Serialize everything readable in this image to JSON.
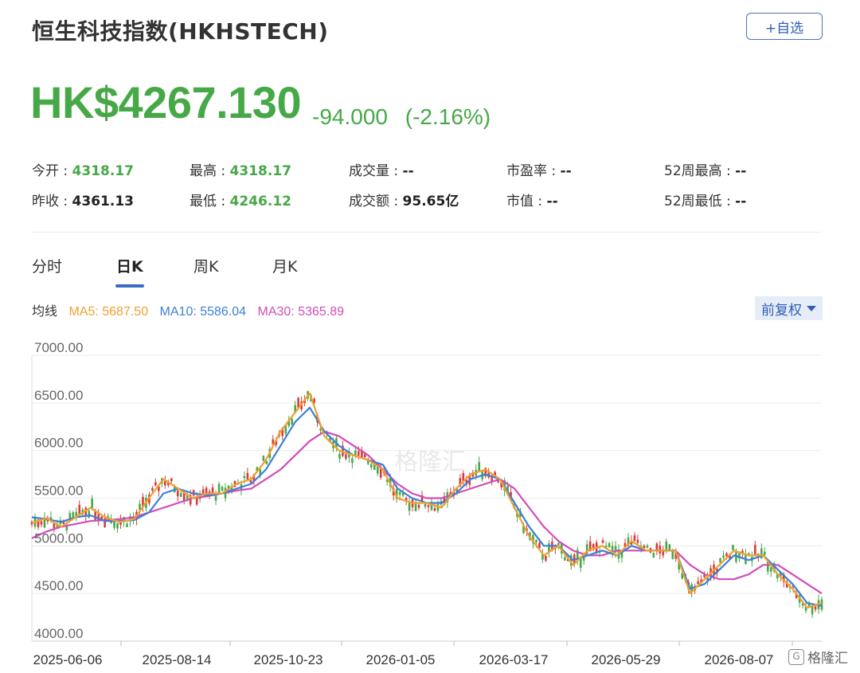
{
  "header": {
    "title": "恒生科技指数(HKHSTECH)",
    "watch_button": "+自选"
  },
  "quote": {
    "price": "HK$4267.130",
    "change": "-94.000",
    "change_pct": "(-2.16%)",
    "color_down": "#47a848"
  },
  "stats": {
    "row1": [
      {
        "label": "今开 : ",
        "value": "4318.17",
        "tone": "green"
      },
      {
        "label": "最高 : ",
        "value": "4318.17",
        "tone": "green"
      },
      {
        "label": "成交量 : ",
        "value": "--",
        "tone": "dark"
      },
      {
        "label": "市盈率 : ",
        "value": "--",
        "tone": "dark"
      },
      {
        "label": "52周最高 : ",
        "value": "--",
        "tone": "dark"
      }
    ],
    "row2": [
      {
        "label": "昨收 : ",
        "value": "4361.13",
        "tone": "dark"
      },
      {
        "label": "最低 : ",
        "value": "4246.12",
        "tone": "green"
      },
      {
        "label": "成交额 : ",
        "value": "95.65亿",
        "tone": "dark"
      },
      {
        "label": "市值 : ",
        "value": "--",
        "tone": "dark"
      },
      {
        "label": "52周最低 : ",
        "value": "--",
        "tone": "dark"
      }
    ]
  },
  "tabs": [
    "分时",
    "日K",
    "周K",
    "月K"
  ],
  "active_tab": "日K",
  "ma": {
    "label": "均线",
    "ma5": "MA5: 5687.50",
    "ma10": "MA10: 5586.04",
    "ma30": "MA30: 5365.89"
  },
  "adjust_button": "前复权",
  "watermark": "格隆汇",
  "footer_logo": "格隆汇",
  "chart_data": {
    "type": "line",
    "y_ticks": [
      "7000.00",
      "6500.00",
      "6000.00",
      "5500.00",
      "5000.00",
      "4500.00",
      "4000.00"
    ],
    "ylim": [
      4000,
      7000
    ],
    "x_ticks": [
      "2025-06-06",
      "2025-08-14",
      "2025-10-23",
      "2026-01-05",
      "2026-03-17",
      "2026-05-29",
      "2026-08-07"
    ],
    "colors": {
      "up": "#d93a3a",
      "down": "#47a848",
      "ma5": "#f0a030",
      "ma10": "#3d7fd8",
      "ma30": "#d14cba"
    },
    "series": [
      {
        "name": "MA5",
        "values": [
          5240,
          5290,
          5200,
          5300,
          5400,
          5300,
          5250,
          5280,
          5500,
          5700,
          5600,
          5500,
          5550,
          5550,
          5650,
          5700,
          5900,
          6200,
          6400,
          6600,
          6150,
          6000,
          5950,
          5900,
          5800,
          5500,
          5450,
          5450,
          5400,
          5600,
          5750,
          5800,
          5700,
          5400,
          5100,
          4900,
          5000,
          4800,
          4950,
          5000,
          4900,
          5050,
          4950,
          4950,
          4950,
          4500,
          4650,
          4800,
          4950,
          4900,
          4900,
          4700,
          4550,
          4350,
          4400
        ]
      },
      {
        "name": "MA10",
        "values": [
          5300,
          5280,
          5250,
          5300,
          5320,
          5260,
          5260,
          5270,
          5350,
          5550,
          5600,
          5550,
          5530,
          5550,
          5600,
          5650,
          5800,
          6050,
          6300,
          6450,
          6200,
          6050,
          5950,
          5900,
          5850,
          5600,
          5500,
          5450,
          5450,
          5550,
          5700,
          5750,
          5700,
          5450,
          5200,
          5000,
          5000,
          4850,
          4900,
          4950,
          4900,
          5000,
          4950,
          4950,
          4950,
          4550,
          4600,
          4750,
          4900,
          4850,
          4900,
          4750,
          4600,
          4400,
          4370
        ]
      },
      {
        "name": "MA30",
        "values": [
          5080,
          5150,
          5200,
          5230,
          5260,
          5270,
          5280,
          5300,
          5350,
          5400,
          5450,
          5500,
          5520,
          5550,
          5580,
          5600,
          5700,
          5800,
          5950,
          6100,
          6200,
          6150,
          6050,
          5950,
          5800,
          5650,
          5550,
          5500,
          5500,
          5550,
          5600,
          5650,
          5700,
          5600,
          5400,
          5200,
          5050,
          4950,
          4900,
          4900,
          4950,
          4950,
          4950,
          4950,
          4950,
          4800,
          4700,
          4650,
          4650,
          4700,
          4800,
          4800,
          4700,
          4600,
          4500
        ]
      }
    ]
  }
}
